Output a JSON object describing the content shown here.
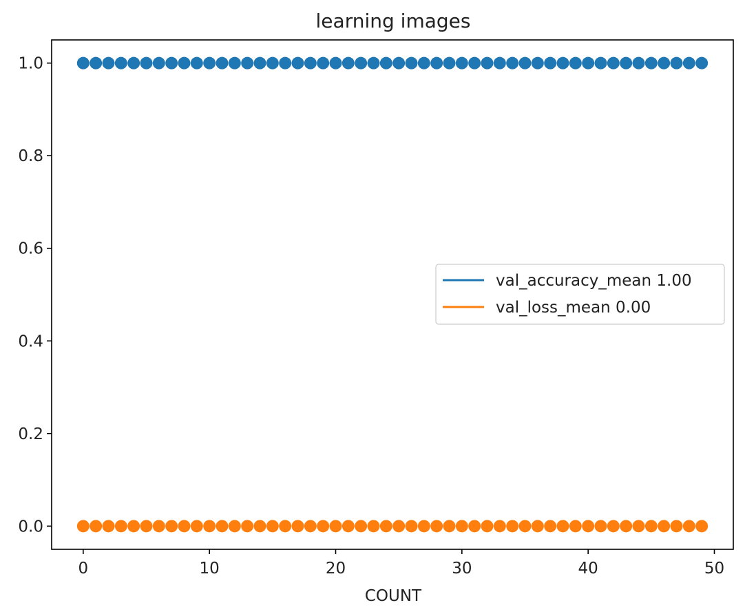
{
  "chart_data": {
    "type": "scatter",
    "title": "learning images",
    "xlabel": "COUNT",
    "ylabel": "",
    "xlim": [
      -2.5,
      51.5
    ],
    "ylim": [
      -0.05,
      1.05
    ],
    "xticks": [
      0,
      10,
      20,
      30,
      40,
      50
    ],
    "yticks": [
      0.0,
      0.2,
      0.4,
      0.6,
      0.8,
      1.0
    ],
    "x": [
      0,
      1,
      2,
      3,
      4,
      5,
      6,
      7,
      8,
      9,
      10,
      11,
      12,
      13,
      14,
      15,
      16,
      17,
      18,
      19,
      20,
      21,
      22,
      23,
      24,
      25,
      26,
      27,
      28,
      29,
      30,
      31,
      32,
      33,
      34,
      35,
      36,
      37,
      38,
      39,
      40,
      41,
      42,
      43,
      44,
      45,
      46,
      47,
      48,
      49
    ],
    "series": [
      {
        "name": "val_accuracy_mean 1.00",
        "color": "#1f77b4",
        "values": [
          1,
          1,
          1,
          1,
          1,
          1,
          1,
          1,
          1,
          1,
          1,
          1,
          1,
          1,
          1,
          1,
          1,
          1,
          1,
          1,
          1,
          1,
          1,
          1,
          1,
          1,
          1,
          1,
          1,
          1,
          1,
          1,
          1,
          1,
          1,
          1,
          1,
          1,
          1,
          1,
          1,
          1,
          1,
          1,
          1,
          1,
          1,
          1,
          1,
          1
        ]
      },
      {
        "name": "val_loss_mean 0.00",
        "color": "#ff7f0e",
        "values": [
          0,
          0,
          0,
          0,
          0,
          0,
          0,
          0,
          0,
          0,
          0,
          0,
          0,
          0,
          0,
          0,
          0,
          0,
          0,
          0,
          0,
          0,
          0,
          0,
          0,
          0,
          0,
          0,
          0,
          0,
          0,
          0,
          0,
          0,
          0,
          0,
          0,
          0,
          0,
          0,
          0,
          0,
          0,
          0,
          0,
          0,
          0,
          0,
          0,
          0
        ]
      }
    ],
    "grid": false,
    "legend_position": "center-right"
  }
}
